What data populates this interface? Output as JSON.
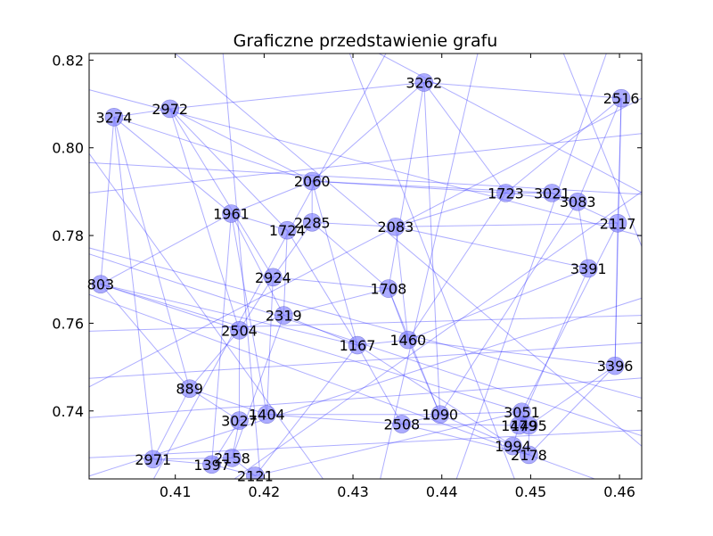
{
  "chart_data": {
    "type": "scatter",
    "title": "Graficzne przedstawienie grafu",
    "xlabel": "",
    "ylabel": "",
    "xlim": [
      0.4003,
      0.4625
    ],
    "ylim": [
      0.7245,
      0.8215
    ],
    "x_ticks": [
      "0.41",
      "0.42",
      "0.43",
      "0.44",
      "0.45",
      "0.46"
    ],
    "x_tick_values": [
      0.41,
      0.42,
      0.43,
      0.44,
      0.45,
      0.46
    ],
    "y_ticks": [
      "0.74",
      "0.76",
      "0.78",
      "0.80",
      "0.82"
    ],
    "y_tick_values": [
      0.74,
      0.76,
      0.78,
      0.8,
      0.82
    ],
    "grid": false,
    "node_color": "#7f7fff",
    "edge_color": "#2a2aff",
    "nodes": [
      {
        "id": "3262",
        "x": 0.438,
        "y": 0.8149
      },
      {
        "id": "2516",
        "x": 0.4602,
        "y": 0.8113
      },
      {
        "id": "3274",
        "x": 0.4031,
        "y": 0.807
      },
      {
        "id": "2972",
        "x": 0.4094,
        "y": 0.8089
      },
      {
        "id": "2060",
        "x": 0.4254,
        "y": 0.7924
      },
      {
        "id": "1723",
        "x": 0.4472,
        "y": 0.7897
      },
      {
        "id": "3021",
        "x": 0.4524,
        "y": 0.7897
      },
      {
        "id": "3083",
        "x": 0.4553,
        "y": 0.7877
      },
      {
        "id": "1961",
        "x": 0.4163,
        "y": 0.785
      },
      {
        "id": "2285",
        "x": 0.4254,
        "y": 0.783
      },
      {
        "id": "1724",
        "x": 0.4226,
        "y": 0.7812
      },
      {
        "id": "2083",
        "x": 0.4348,
        "y": 0.782
      },
      {
        "id": "2117",
        "x": 0.4598,
        "y": 0.7828
      },
      {
        "id": "3391",
        "x": 0.4565,
        "y": 0.7725
      },
      {
        "id": "803",
        "x": 0.4016,
        "y": 0.7689
      },
      {
        "id": "2924",
        "x": 0.421,
        "y": 0.7705
      },
      {
        "id": "1708",
        "x": 0.434,
        "y": 0.7679
      },
      {
        "id": "2319",
        "x": 0.4222,
        "y": 0.7618
      },
      {
        "id": "2504",
        "x": 0.4172,
        "y": 0.7584
      },
      {
        "id": "1167",
        "x": 0.4305,
        "y": 0.755
      },
      {
        "id": "1460",
        "x": 0.4362,
        "y": 0.7562
      },
      {
        "id": "3396",
        "x": 0.4595,
        "y": 0.7503
      },
      {
        "id": "889",
        "x": 0.4116,
        "y": 0.7451
      },
      {
        "id": "3051",
        "x": 0.449,
        "y": 0.7398
      },
      {
        "id": "1404",
        "x": 0.4203,
        "y": 0.7392
      },
      {
        "id": "1090",
        "x": 0.4398,
        "y": 0.7392
      },
      {
        "id": "3027",
        "x": 0.4172,
        "y": 0.7378
      },
      {
        "id": "2508",
        "x": 0.4355,
        "y": 0.737
      },
      {
        "id": "1479",
        "x": 0.4487,
        "y": 0.7367
      },
      {
        "id": "1495",
        "x": 0.4498,
        "y": 0.7367
      },
      {
        "id": "1994",
        "x": 0.448,
        "y": 0.732
      },
      {
        "id": "2178",
        "x": 0.4498,
        "y": 0.73
      },
      {
        "id": "2971",
        "x": 0.4075,
        "y": 0.729
      },
      {
        "id": "2158",
        "x": 0.4164,
        "y": 0.7293
      },
      {
        "id": "1397",
        "x": 0.4141,
        "y": 0.7278
      },
      {
        "id": "2121",
        "x": 0.419,
        "y": 0.7252
      }
    ],
    "edges": [
      [
        "3262",
        "1723"
      ],
      [
        "3262",
        "2060"
      ],
      [
        "3262",
        "1708"
      ],
      [
        "3262",
        "2516"
      ],
      [
        "3262",
        "2972"
      ],
      [
        "3262",
        "1090"
      ],
      [
        "2516",
        "3083"
      ],
      [
        "2516",
        "2117"
      ],
      [
        "2516",
        "3396"
      ],
      [
        "2516",
        "1723"
      ],
      [
        "3274",
        "2972"
      ],
      [
        "3274",
        "1961"
      ],
      [
        "3274",
        "803"
      ],
      [
        "3274",
        "2060"
      ],
      [
        "3274",
        "889"
      ],
      [
        "2972",
        "2060"
      ],
      [
        "2972",
        "2504"
      ],
      [
        "2972",
        "1724"
      ],
      [
        "2972",
        "2924"
      ],
      [
        "2060",
        "2285"
      ],
      [
        "2060",
        "1723"
      ],
      [
        "2060",
        "1961"
      ],
      [
        "2060",
        "1167"
      ],
      [
        "2060",
        "3021"
      ],
      [
        "1723",
        "3021"
      ],
      [
        "1723",
        "3083"
      ],
      [
        "1723",
        "1460"
      ],
      [
        "1723",
        "2083"
      ],
      [
        "3021",
        "3083"
      ],
      [
        "3021",
        "2117"
      ],
      [
        "3083",
        "3391"
      ],
      [
        "3083",
        "1090"
      ],
      [
        "1961",
        "1724"
      ],
      [
        "1961",
        "2319"
      ],
      [
        "1961",
        "803"
      ],
      [
        "1961",
        "1404"
      ],
      [
        "2285",
        "2083"
      ],
      [
        "2285",
        "1708"
      ],
      [
        "2285",
        "2924"
      ],
      [
        "1724",
        "2319"
      ],
      [
        "1724",
        "1167"
      ],
      [
        "2083",
        "1460"
      ],
      [
        "2083",
        "3391"
      ],
      [
        "2083",
        "2117"
      ],
      [
        "2117",
        "3396"
      ],
      [
        "2117",
        "3051"
      ],
      [
        "3391",
        "1479"
      ],
      [
        "3391",
        "1460"
      ],
      [
        "803",
        "2504"
      ],
      [
        "803",
        "889"
      ],
      [
        "803",
        "1167"
      ],
      [
        "803",
        "3051"
      ],
      [
        "2924",
        "2504"
      ],
      [
        "2924",
        "1708"
      ],
      [
        "2924",
        "1404"
      ],
      [
        "1708",
        "1460"
      ],
      [
        "1708",
        "1090"
      ],
      [
        "1708",
        "2319"
      ],
      [
        "2319",
        "2504"
      ],
      [
        "2319",
        "1167"
      ],
      [
        "2319",
        "2158"
      ],
      [
        "2504",
        "889"
      ],
      [
        "2504",
        "3027"
      ],
      [
        "1167",
        "1460"
      ],
      [
        "1167",
        "2508"
      ],
      [
        "1167",
        "1994"
      ],
      [
        "1460",
        "1090"
      ],
      [
        "1460",
        "3396"
      ],
      [
        "3396",
        "1495"
      ],
      [
        "3396",
        "2178"
      ],
      [
        "889",
        "3027"
      ],
      [
        "889",
        "2971"
      ],
      [
        "889",
        "1404"
      ],
      [
        "3051",
        "1479"
      ],
      [
        "3051",
        "1495"
      ],
      [
        "3051",
        "1090"
      ],
      [
        "1404",
        "1090"
      ],
      [
        "1404",
        "3027"
      ],
      [
        "1404",
        "2508"
      ],
      [
        "1090",
        "2508"
      ],
      [
        "1090",
        "1994"
      ],
      [
        "3027",
        "2158"
      ],
      [
        "3027",
        "1397"
      ],
      [
        "2508",
        "1479"
      ],
      [
        "1479",
        "1495"
      ],
      [
        "1479",
        "1994"
      ],
      [
        "1495",
        "2178"
      ],
      [
        "1994",
        "2178"
      ],
      [
        "2971",
        "1397"
      ],
      [
        "2971",
        "2158"
      ],
      [
        "2158",
        "2121"
      ],
      [
        "1397",
        "2121"
      ],
      [
        "2121",
        "1167"
      ],
      [
        "2178",
        "2508"
      ],
      [
        "2971",
        "3274"
      ],
      [
        "1397",
        "1961"
      ],
      [
        "2121",
        "3051"
      ]
    ],
    "external_edges": [
      [
        [
          0.397,
          0.815
        ],
        [
          0.466,
          0.778
        ]
      ],
      [
        [
          0.397,
          0.797
        ],
        [
          0.466,
          0.789
        ]
      ],
      [
        [
          0.397,
          0.789
        ],
        [
          0.466,
          0.804
        ]
      ],
      [
        [
          0.397,
          0.779
        ],
        [
          0.466,
          0.741
        ]
      ],
      [
        [
          0.397,
          0.769
        ],
        [
          0.466,
          0.718
        ]
      ],
      [
        [
          0.397,
          0.758
        ],
        [
          0.466,
          0.762
        ]
      ],
      [
        [
          0.397,
          0.747
        ],
        [
          0.466,
          0.756
        ]
      ],
      [
        [
          0.397,
          0.738
        ],
        [
          0.466,
          0.748
        ]
      ],
      [
        [
          0.397,
          0.729
        ],
        [
          0.466,
          0.736
        ]
      ],
      [
        [
          0.397,
          0.723
        ],
        [
          0.466,
          0.768
        ]
      ],
      [
        [
          0.397,
          0.808
        ],
        [
          0.43,
          0.715
        ]
      ],
      [
        [
          0.405,
          0.83
        ],
        [
          0.466,
          0.726
        ]
      ],
      [
        [
          0.415,
          0.83
        ],
        [
          0.42,
          0.715
        ]
      ],
      [
        [
          0.428,
          0.83
        ],
        [
          0.45,
          0.715
        ]
      ],
      [
        [
          0.445,
          0.83
        ],
        [
          0.432,
          0.715
        ]
      ],
      [
        [
          0.452,
          0.83
        ],
        [
          0.466,
          0.76
        ]
      ],
      [
        [
          0.46,
          0.83
        ],
        [
          0.44,
          0.715
        ]
      ],
      [
        [
          0.397,
          0.742
        ],
        [
          0.466,
          0.815
        ]
      ],
      [
        [
          0.41,
          0.715
        ],
        [
          0.466,
          0.795
        ]
      ],
      [
        [
          0.436,
          0.83
        ],
        [
          0.405,
          0.715
        ]
      ],
      [
        [
          0.397,
          0.778
        ],
        [
          0.466,
          0.732
        ]
      ],
      [
        [
          0.425,
          0.83
        ],
        [
          0.466,
          0.786
        ]
      ]
    ]
  }
}
